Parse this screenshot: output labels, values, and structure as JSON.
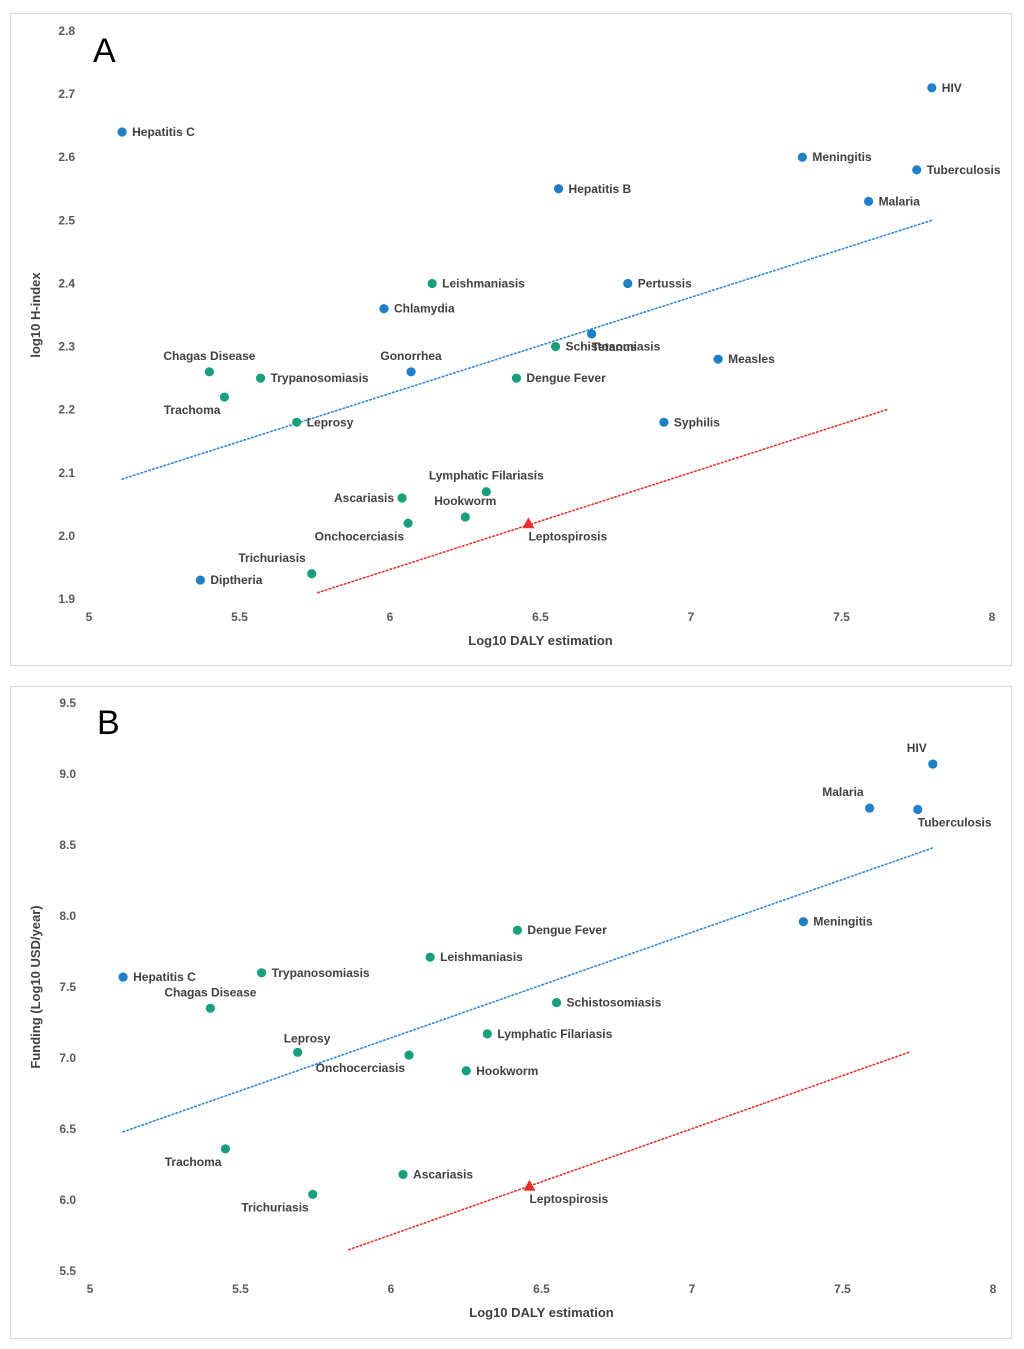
{
  "colors": {
    "infectious": "#1f7fc7",
    "ntd": "#17a07a",
    "leptospirosis": "#e8302b",
    "trend_blue": "#2e86d4",
    "trend_red": "#e8302b",
    "axis_text": "#595959"
  },
  "chart_data": [
    {
      "panel": "A",
      "type": "scatter",
      "xlabel": "Log10 DALY estimation",
      "ylabel": "log10 H-index",
      "xlim": [
        5,
        8
      ],
      "ylim": [
        1.9,
        2.8
      ],
      "xticks": [
        "5",
        "5.5",
        "6",
        "6.5",
        "7",
        "7.5",
        "8"
      ],
      "yticks": [
        "1.9",
        "2.0",
        "2.1",
        "2.2",
        "2.3",
        "2.4",
        "2.5",
        "2.6",
        "2.7",
        "2.8"
      ],
      "grid": false,
      "points": [
        {
          "label": "HIV",
          "x": 7.8,
          "y": 2.71,
          "group": "infectious",
          "pos": "right"
        },
        {
          "label": "Hepatitis C",
          "x": 5.11,
          "y": 2.64,
          "group": "infectious",
          "pos": "right"
        },
        {
          "label": "Meningitis",
          "x": 7.37,
          "y": 2.6,
          "group": "infectious",
          "pos": "right"
        },
        {
          "label": "Tuberculosis",
          "x": 7.75,
          "y": 2.58,
          "group": "infectious",
          "pos": "right"
        },
        {
          "label": "Hepatitis B",
          "x": 6.56,
          "y": 2.55,
          "group": "infectious",
          "pos": "right"
        },
        {
          "label": "Malaria",
          "x": 7.59,
          "y": 2.53,
          "group": "infectious",
          "pos": "right"
        },
        {
          "label": "Leishmaniasis",
          "x": 6.14,
          "y": 2.4,
          "group": "ntd",
          "pos": "right"
        },
        {
          "label": "Pertussis",
          "x": 6.79,
          "y": 2.4,
          "group": "infectious",
          "pos": "right"
        },
        {
          "label": "Chlamydia",
          "x": 5.98,
          "y": 2.36,
          "group": "infectious",
          "pos": "right"
        },
        {
          "label": "Tetanus",
          "x": 6.67,
          "y": 2.32,
          "group": "infectious",
          "pos": "belowright"
        },
        {
          "label": "Schistosomiasis",
          "x": 6.55,
          "y": 2.3,
          "group": "ntd",
          "pos": "right"
        },
        {
          "label": "Measles",
          "x": 7.09,
          "y": 2.28,
          "group": "infectious",
          "pos": "right"
        },
        {
          "label": "Gonorrhea",
          "x": 6.07,
          "y": 2.26,
          "group": "infectious",
          "pos": "above"
        },
        {
          "label": "Chagas Disease",
          "x": 5.4,
          "y": 2.26,
          "group": "ntd",
          "pos": "above"
        },
        {
          "label": "Trypanosomiasis",
          "x": 5.57,
          "y": 2.25,
          "group": "ntd",
          "pos": "right"
        },
        {
          "label": "Dengue Fever",
          "x": 6.42,
          "y": 2.25,
          "group": "ntd",
          "pos": "right"
        },
        {
          "label": "Trachoma",
          "x": 5.45,
          "y": 2.22,
          "group": "ntd",
          "pos": "belowleft"
        },
        {
          "label": "Leprosy",
          "x": 5.69,
          "y": 2.18,
          "group": "ntd",
          "pos": "right"
        },
        {
          "label": "Syphilis",
          "x": 6.91,
          "y": 2.18,
          "group": "infectious",
          "pos": "right"
        },
        {
          "label": "Lymphatic Filariasis",
          "x": 6.32,
          "y": 2.07,
          "group": "ntd",
          "pos": "above"
        },
        {
          "label": "Ascariasis",
          "x": 6.04,
          "y": 2.06,
          "group": "ntd",
          "pos": "left"
        },
        {
          "label": "Hookworm",
          "x": 6.25,
          "y": 2.03,
          "group": "ntd",
          "pos": "above"
        },
        {
          "label": "Onchocerciasis",
          "x": 6.06,
          "y": 2.02,
          "group": "ntd",
          "pos": "belowleft"
        },
        {
          "label": "Leptospirosis",
          "x": 6.46,
          "y": 2.02,
          "group": "leptospirosis",
          "pos": "belowright"
        },
        {
          "label": "Trichuriasis",
          "x": 5.74,
          "y": 1.94,
          "group": "ntd",
          "pos": "aboveleft"
        },
        {
          "label": "Diptheria",
          "x": 5.37,
          "y": 1.93,
          "group": "infectious",
          "pos": "right"
        }
      ],
      "trendlines": [
        {
          "color": "trend_blue",
          "from": [
            5.11,
            2.09
          ],
          "to": [
            7.8,
            2.5
          ]
        },
        {
          "color": "trend_red",
          "from": [
            5.76,
            1.91
          ],
          "to": [
            7.65,
            2.2
          ]
        }
      ]
    },
    {
      "panel": "B",
      "type": "scatter",
      "xlabel": "Log10 DALY estimation",
      "ylabel": "Funding (Log10 USD/year)",
      "xlim": [
        5,
        8
      ],
      "ylim": [
        5.5,
        9.5
      ],
      "xticks": [
        "5",
        "5.5",
        "6",
        "6.5",
        "7",
        "7.5",
        "8"
      ],
      "yticks": [
        "5.5",
        "6.0",
        "6.5",
        "7.0",
        "7.5",
        "8.0",
        "8.5",
        "9.0",
        "9.5"
      ],
      "grid": false,
      "points": [
        {
          "label": "HIV",
          "x": 7.8,
          "y": 9.07,
          "group": "infectious",
          "pos": "aboveleft"
        },
        {
          "label": "Malaria",
          "x": 7.59,
          "y": 8.76,
          "group": "infectious",
          "pos": "aboveleft"
        },
        {
          "label": "Tuberculosis",
          "x": 7.75,
          "y": 8.75,
          "group": "infectious",
          "pos": "belowright"
        },
        {
          "label": "Meningitis",
          "x": 7.37,
          "y": 7.96,
          "group": "infectious",
          "pos": "right"
        },
        {
          "label": "Dengue Fever",
          "x": 6.42,
          "y": 7.9,
          "group": "ntd",
          "pos": "right"
        },
        {
          "label": "Leishmaniasis",
          "x": 6.13,
          "y": 7.71,
          "group": "ntd",
          "pos": "right"
        },
        {
          "label": "Trypanosomiasis",
          "x": 5.57,
          "y": 7.6,
          "group": "ntd",
          "pos": "right"
        },
        {
          "label": "Hepatitis C",
          "x": 5.11,
          "y": 7.57,
          "group": "infectious",
          "pos": "right"
        },
        {
          "label": "Schistosomiasis",
          "x": 6.55,
          "y": 7.39,
          "group": "ntd",
          "pos": "right"
        },
        {
          "label": "Chagas Disease",
          "x": 5.4,
          "y": 7.35,
          "group": "ntd",
          "pos": "above"
        },
        {
          "label": "Lymphatic Filariasis",
          "x": 6.32,
          "y": 7.17,
          "group": "ntd",
          "pos": "right"
        },
        {
          "label": "Leprosy",
          "x": 5.69,
          "y": 7.04,
          "group": "ntd",
          "pos": "aboveright"
        },
        {
          "label": "Onchocerciasis",
          "x": 6.06,
          "y": 7.02,
          "group": "ntd",
          "pos": "belowleft"
        },
        {
          "label": "Hookworm",
          "x": 6.25,
          "y": 6.91,
          "group": "ntd",
          "pos": "right"
        },
        {
          "label": "Trachoma",
          "x": 5.45,
          "y": 6.36,
          "group": "ntd",
          "pos": "belowleft"
        },
        {
          "label": "Ascariasis",
          "x": 6.04,
          "y": 6.18,
          "group": "ntd",
          "pos": "right"
        },
        {
          "label": "Leptospirosis",
          "x": 6.46,
          "y": 6.1,
          "group": "leptospirosis",
          "pos": "belowright"
        },
        {
          "label": "Trichuriasis",
          "x": 5.74,
          "y": 6.04,
          "group": "ntd",
          "pos": "belowleft"
        }
      ],
      "trendlines": [
        {
          "color": "trend_blue",
          "from": [
            5.11,
            6.48
          ],
          "to": [
            7.8,
            8.48
          ]
        },
        {
          "color": "trend_red",
          "from": [
            5.86,
            5.65
          ],
          "to": [
            7.72,
            7.04
          ]
        }
      ]
    }
  ]
}
